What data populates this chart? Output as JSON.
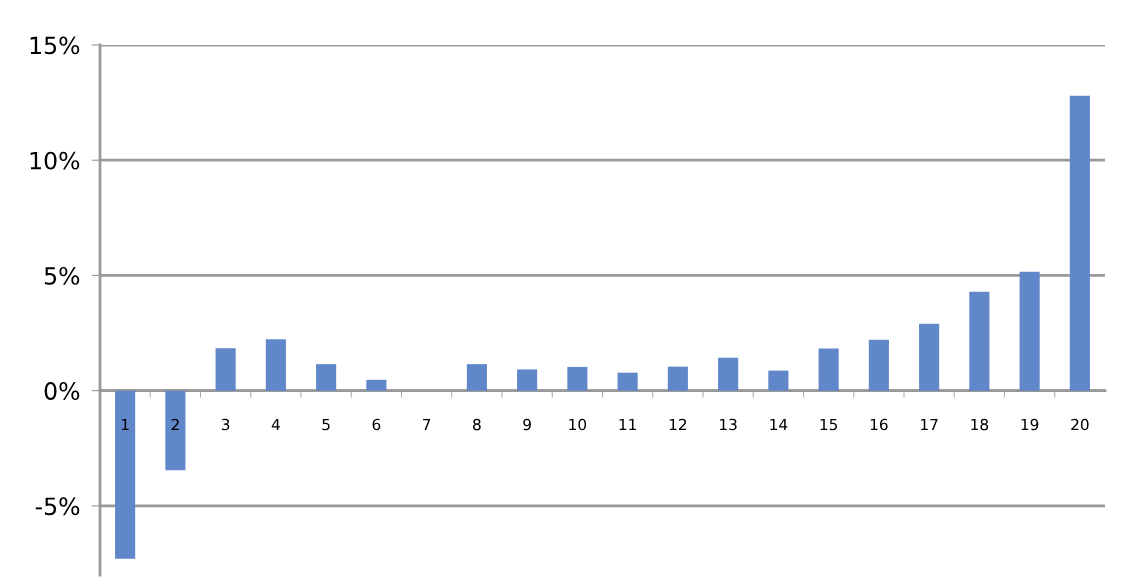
{
  "chart_data": {
    "type": "bar",
    "categories": [
      "1",
      "2",
      "3",
      "4",
      "5",
      "6",
      "7",
      "8",
      "9",
      "10",
      "11",
      "12",
      "13",
      "14",
      "15",
      "16",
      "17",
      "18",
      "19",
      "20"
    ],
    "values": [
      -7.3,
      -3.45,
      1.84,
      2.23,
      1.15,
      0.47,
      0,
      1.15,
      0.92,
      1.03,
      0.78,
      1.04,
      1.43,
      0.87,
      1.83,
      2.21,
      2.9,
      4.29,
      5.16,
      12.8
    ],
    "color": "#5f87c9",
    "ylim": [
      -8,
      15
    ],
    "yticks": [
      {
        "value": -5,
        "label": "-5%"
      },
      {
        "value": 0,
        "label": "0%"
      },
      {
        "value": 5,
        "label": "5%"
      },
      {
        "value": 10,
        "label": "10%"
      },
      {
        "value": 15,
        "label": "15%"
      }
    ],
    "grid": "y",
    "legend": false
  }
}
